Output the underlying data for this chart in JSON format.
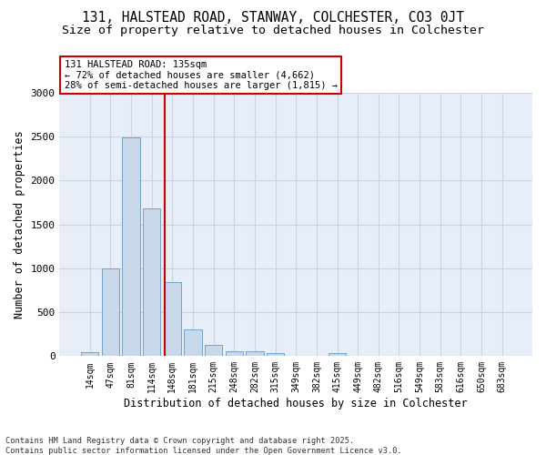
{
  "title1": "131, HALSTEAD ROAD, STANWAY, COLCHESTER, CO3 0JT",
  "title2": "Size of property relative to detached houses in Colchester",
  "xlabel": "Distribution of detached houses by size in Colchester",
  "ylabel": "Number of detached properties",
  "categories": [
    "14sqm",
    "47sqm",
    "81sqm",
    "114sqm",
    "148sqm",
    "181sqm",
    "215sqm",
    "248sqm",
    "282sqm",
    "315sqm",
    "349sqm",
    "382sqm",
    "415sqm",
    "449sqm",
    "482sqm",
    "516sqm",
    "549sqm",
    "583sqm",
    "616sqm",
    "650sqm",
    "683sqm"
  ],
  "values": [
    50,
    1000,
    2490,
    1680,
    840,
    300,
    130,
    55,
    55,
    35,
    0,
    0,
    30,
    0,
    0,
    0,
    0,
    0,
    0,
    0,
    0
  ],
  "bar_color": "#c8d8ea",
  "bar_edge_color": "#6699bb",
  "vline_x": 3.62,
  "vline_color": "#cc0000",
  "annotation_line1": "131 HALSTEAD ROAD: 135sqm",
  "annotation_line2": "← 72% of detached houses are smaller (4,662)",
  "annotation_line3": "28% of semi-detached houses are larger (1,815) →",
  "ylim": [
    0,
    3000
  ],
  "yticks": [
    0,
    500,
    1000,
    1500,
    2000,
    2500,
    3000
  ],
  "grid_color": "#c8d4e4",
  "bg_color": "#e8eef8",
  "footer1": "Contains HM Land Registry data © Crown copyright and database right 2025.",
  "footer2": "Contains public sector information licensed under the Open Government Licence v3.0."
}
